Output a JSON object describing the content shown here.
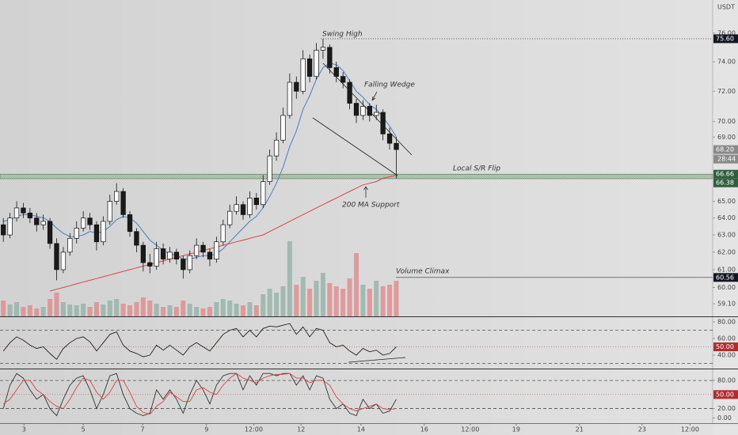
{
  "chart_data": {
    "type": "candlestick",
    "currency": "USDT",
    "log": true,
    "xlim": [
      0,
      107
    ],
    "xticks": [
      {
        "value": 3.6,
        "label": "3"
      },
      {
        "value": 12.5,
        "label": "5"
      },
      {
        "value": 21.4,
        "label": "7"
      },
      {
        "value": 31,
        "label": "9"
      },
      {
        "value": 38.1,
        "label": "12:00"
      },
      {
        "value": 45.2,
        "label": "12"
      },
      {
        "value": 54.2,
        "label": "14"
      },
      {
        "value": 63.7,
        "label": "16"
      },
      {
        "value": 70.6,
        "label": "12:00"
      },
      {
        "value": 77.5,
        "label": "19"
      },
      {
        "value": 87,
        "label": "21"
      },
      {
        "value": 96.4,
        "label": "23"
      },
      {
        "value": 103.6,
        "label": "12:00"
      }
    ],
    "ylim": [
      58.41,
      78.37
    ],
    "yticks": [
      {
        "value": 76,
        "label": "76.00"
      },
      {
        "value": 74,
        "label": "74.00"
      },
      {
        "value": 72,
        "label": "72.00"
      },
      {
        "value": 70,
        "label": "70.00"
      },
      {
        "value": 69,
        "label": "69.00"
      },
      {
        "value": 65,
        "label": "65.00"
      },
      {
        "value": 64,
        "label": "64.00"
      },
      {
        "value": 63,
        "label": "63.00"
      },
      {
        "value": 62,
        "label": "62.00"
      },
      {
        "value": 61,
        "label": "61.00"
      },
      {
        "value": 60,
        "label": "60.00"
      },
      {
        "value": 59.1,
        "label": "59.10"
      }
    ],
    "up_color": "#ffffff",
    "down_color": "#1a1a1a",
    "open": [
      63.6,
      63.0,
      64.0,
      64.6,
      64.3,
      64.0,
      63.6,
      63.8,
      62.5,
      61.0,
      62.0,
      62.8,
      63.4,
      64.0,
      63.6,
      62.6,
      63.8,
      65.0,
      65.6,
      64.2,
      63.2,
      62.4,
      61.4,
      61.2,
      62.2,
      61.6,
      62.0,
      61.6,
      61.0,
      61.8,
      62.4,
      62.0,
      61.6,
      62.6,
      63.6,
      64.4,
      64.8,
      64.2,
      65.2,
      64.8,
      66.2,
      67.8,
      68.8,
      70.4,
      72.6,
      72.0,
      74.2,
      73.0,
      74.8,
      75.0,
      73.6,
      73.0,
      72.6,
      71.2,
      70.4,
      71.0,
      70.4,
      70.6,
      69.2,
      68.6
    ],
    "high": [
      64.0,
      64.3,
      65.0,
      64.9,
      64.6,
      64.3,
      64.2,
      64.0,
      62.8,
      62.3,
      63.1,
      63.8,
      64.4,
      64.3,
      63.8,
      64.1,
      65.4,
      66.1,
      65.8,
      64.4,
      63.4,
      62.6,
      61.9,
      62.6,
      62.5,
      62.3,
      62.2,
      61.8,
      62.1,
      62.8,
      62.6,
      62.2,
      62.9,
      63.9,
      64.8,
      65.3,
      65.0,
      65.6,
      65.5,
      66.6,
      68.2,
      69.3,
      70.9,
      73.2,
      73.0,
      74.8,
      74.5,
      75.3,
      75.6,
      75.2,
      74.0,
      73.3,
      72.8,
      71.5,
      71.4,
      71.2,
      71.1,
      70.8,
      69.6,
      69.0
    ],
    "low": [
      62.6,
      62.8,
      63.8,
      64.0,
      63.7,
      63.2,
      63.3,
      62.2,
      60.4,
      60.8,
      61.8,
      62.5,
      63.2,
      63.3,
      62.1,
      62.4,
      63.6,
      64.8,
      64.0,
      62.9,
      62.0,
      60.9,
      60.8,
      61.0,
      61.3,
      61.4,
      61.3,
      60.5,
      60.8,
      61.6,
      61.7,
      61.2,
      61.4,
      62.4,
      63.4,
      64.2,
      63.9,
      64.0,
      64.5,
      64.6,
      66.0,
      67.5,
      68.6,
      70.2,
      71.5,
      71.8,
      72.6,
      72.8,
      74.2,
      73.2,
      72.6,
      72.2,
      70.8,
      69.9,
      70.1,
      70.0,
      70.1,
      68.8,
      68.2,
      66.4
    ],
    "close": [
      63.0,
      64.0,
      64.6,
      64.3,
      64.0,
      63.6,
      63.8,
      62.5,
      61.0,
      62.0,
      62.8,
      63.4,
      64.0,
      63.6,
      62.6,
      63.8,
      65.0,
      65.6,
      64.2,
      63.2,
      62.4,
      61.4,
      61.2,
      62.2,
      61.6,
      62.0,
      61.6,
      61.0,
      61.8,
      62.4,
      62.0,
      61.6,
      62.6,
      63.6,
      64.4,
      64.8,
      64.2,
      65.2,
      64.8,
      66.2,
      67.8,
      68.8,
      70.4,
      72.6,
      72.0,
      74.2,
      73.0,
      74.8,
      75.0,
      73.6,
      73.0,
      72.6,
      71.2,
      70.4,
      71.0,
      70.4,
      70.6,
      69.2,
      68.6,
      68.2
    ],
    "series": [
      {
        "color": "#4a7fc0",
        "values": [
          63.8,
          63.9,
          64.1,
          64.2,
          64.2,
          64.1,
          64.0,
          63.8,
          63.4,
          63.1,
          62.9,
          62.9,
          63.0,
          63.2,
          63.1,
          63.2,
          63.5,
          63.9,
          64.1,
          64.0,
          63.7,
          63.2,
          62.7,
          62.4,
          62.1,
          61.9,
          61.8,
          61.6,
          61.6,
          61.7,
          61.8,
          61.8,
          61.9,
          62.2,
          62.6,
          63.0,
          63.4,
          63.8,
          64.1,
          64.6,
          65.3,
          66.1,
          67.1,
          68.4,
          69.4,
          70.8,
          71.7,
          72.8,
          73.6,
          73.9,
          73.8,
          73.4,
          72.7,
          72.0,
          71.6,
          71.1,
          70.8,
          70.3,
          69.7,
          69.0
        ]
      },
      {
        "color": "#d94545",
        "values": [
          null,
          null,
          null,
          null,
          null,
          null,
          null,
          59.8,
          59.9,
          60.0,
          60.1,
          60.2,
          60.3,
          60.4,
          60.5,
          60.6,
          60.7,
          60.8,
          60.9,
          61.0,
          61.1,
          61.2,
          61.3,
          61.4,
          61.5,
          61.6,
          61.7,
          61.8,
          61.9,
          62.0,
          62.1,
          62.2,
          62.3,
          62.4,
          62.5,
          62.6,
          62.7,
          62.8,
          62.9,
          63.0,
          63.2,
          63.4,
          63.6,
          63.8,
          64.0,
          64.2,
          64.4,
          64.6,
          64.8,
          65.0,
          65.2,
          65.4,
          65.6,
          65.8,
          66.0,
          66.1,
          66.2,
          66.4,
          66.5,
          66.6
        ]
      }
    ],
    "volume": {
      "vlim": [
        0,
        100
      ],
      "up_color": "#8fb0a4",
      "down_color": "#e08585",
      "values": [
        20,
        15,
        18,
        12,
        14,
        10,
        12,
        22,
        30,
        18,
        15,
        14,
        16,
        12,
        18,
        15,
        20,
        22,
        16,
        14,
        18,
        24,
        20,
        16,
        12,
        14,
        12,
        20,
        16,
        12,
        10,
        12,
        18,
        22,
        20,
        16,
        14,
        18,
        14,
        28,
        35,
        30,
        38,
        95,
        40,
        50,
        35,
        45,
        55,
        42,
        38,
        35,
        48,
        80,
        40,
        35,
        45,
        38,
        40,
        45
      ]
    },
    "price_labels": [
      {
        "value": 75.6,
        "label": "75.60",
        "color": "#131722"
      },
      {
        "value": 68.2,
        "label": "68.20",
        "color": "#8a8a8a",
        "timer": "28:44"
      },
      {
        "value": 66.66,
        "label": "66.66",
        "color": "#2f5f3c"
      },
      {
        "value": 66.38,
        "label": "66.38",
        "color": "#2f5f3c"
      },
      {
        "value": 60.56,
        "label": "60.56",
        "color": "#131722"
      }
    ],
    "annotations": [
      "Swing High",
      "Falling Wedge",
      "Local S/R Flip",
      "200 MA Support",
      "Volume Climax"
    ],
    "rsi": {
      "ylim": [
        24.8,
        84.8
      ],
      "yticks": [
        {
          "value": 40,
          "label": "40.00"
        },
        {
          "value": 60,
          "label": "60.00"
        },
        {
          "value": 80,
          "label": "80.00"
        }
      ],
      "bands": [
        30,
        70
      ],
      "midline": {
        "value": 50,
        "label": "50.00"
      },
      "color": "#222222",
      "values": [
        45,
        55,
        62,
        58,
        52,
        48,
        50,
        42,
        35,
        48,
        55,
        60,
        62,
        56,
        45,
        55,
        65,
        68,
        52,
        45,
        42,
        38,
        40,
        52,
        46,
        52,
        46,
        40,
        50,
        55,
        50,
        45,
        55,
        65,
        70,
        72,
        62,
        70,
        62,
        72,
        75,
        74,
        76,
        78,
        65,
        74,
        62,
        72,
        70,
        55,
        50,
        52,
        45,
        40,
        48,
        44,
        46,
        40,
        42,
        50
      ]
    },
    "stoch": {
      "ylim": [
        -11,
        102
      ],
      "yticks": [
        {
          "value": 0,
          "label": "0.00"
        },
        {
          "value": 20,
          "label": "20.00"
        },
        {
          "value": 80,
          "label": "80.00"
        }
      ],
      "bands": [
        20,
        80
      ],
      "midline": {
        "value": 50,
        "label": "50.00"
      },
      "series": [
        {
          "color": "#333333",
          "values": [
            20,
            70,
            95,
            85,
            60,
            40,
            50,
            20,
            5,
            40,
            70,
            85,
            90,
            60,
            20,
            50,
            90,
            95,
            50,
            20,
            10,
            5,
            10,
            60,
            40,
            60,
            40,
            10,
            50,
            80,
            60,
            30,
            70,
            90,
            95,
            95,
            60,
            90,
            70,
            95,
            95,
            90,
            95,
            95,
            70,
            90,
            60,
            90,
            85,
            40,
            20,
            30,
            10,
            5,
            40,
            20,
            30,
            10,
            15,
            40
          ]
        },
        {
          "color": "#d94545",
          "values": [
            30,
            40,
            60,
            80,
            80,
            60,
            50,
            35,
            25,
            20,
            40,
            65,
            85,
            80,
            55,
            40,
            55,
            80,
            80,
            55,
            25,
            12,
            8,
            25,
            35,
            55,
            45,
            35,
            35,
            60,
            65,
            55,
            50,
            70,
            85,
            95,
            85,
            80,
            75,
            85,
            90,
            93,
            93,
            95,
            85,
            85,
            75,
            80,
            80,
            70,
            45,
            30,
            20,
            15,
            20,
            25,
            30,
            20,
            18,
            20
          ]
        }
      ]
    }
  }
}
